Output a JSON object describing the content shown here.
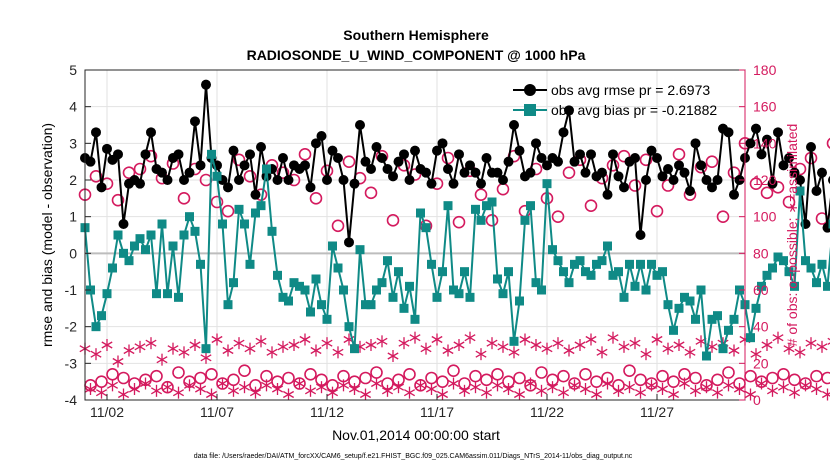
{
  "chart_data": {
    "type": "line",
    "title": "Southern Hemisphere",
    "subtitle": "RADIOSONDE_U_WIND_COMPONENT @ 1000 hPa",
    "xlabel": "Nov.01,2014 00:00:00 start",
    "ylabel": "rmse and bias (model - observation)",
    "y2label": "# of obs: o=possible; ∗=assimilated",
    "footnote": "data file: /Users/raeder/DAI/ATM_forcXX/CAM6_setup/f.e21.FHIST_BGC.f09_025.CAM6assim.011/Diags_NTrS_2014-11/obs_diag_output.nc",
    "xlim": [
      1,
      31
    ],
    "x_ticks": [
      2,
      7,
      12,
      17,
      22,
      27
    ],
    "x_tick_labels": [
      "11/02",
      "11/07",
      "11/12",
      "11/17",
      "11/22",
      "11/27"
    ],
    "ylim": [
      -4,
      5
    ],
    "y_ticks": [
      "-4",
      "-3",
      "-2",
      "-1",
      "0",
      "1",
      "2",
      "3",
      "4",
      "5"
    ],
    "y2lim": [
      0,
      180
    ],
    "y2_ticks": [
      "0",
      "20",
      "40",
      "60",
      "80",
      "100",
      "120",
      "140",
      "160",
      "180"
    ],
    "grid": true,
    "legend_placement": "top-right",
    "colors": {
      "rmse": "#000000",
      "bias": "#0f8a86",
      "obs_count": "#d41a5e",
      "zero_line": "#bdbdbd",
      "y2_axis": "#d41a5e"
    },
    "series": [
      {
        "name": "obs avg rmse pr = 2.6973",
        "marker": "filled-circle",
        "step_days": 0.25,
        "x_start": 1,
        "values": [
          2.6,
          2.5,
          3.3,
          1.8,
          2.85,
          2.55,
          2.7,
          0.8,
          1.9,
          2.0,
          1.9,
          2.7,
          3.3,
          2.3,
          2.2,
          2.0,
          2.6,
          2.7,
          2.0,
          2.2,
          3.6,
          2.4,
          4.6,
          2.6,
          2.4,
          2.0,
          1.8,
          2.8,
          2.0,
          2.4,
          2.7,
          1.6,
          2.9,
          2.1,
          2.3,
          2.0,
          2.6,
          2.0,
          2.4,
          2.3,
          2.4,
          1.8,
          3.0,
          3.2,
          2.0,
          2.8,
          2.6,
          2.0,
          0.3,
          1.9,
          3.5,
          2.5,
          2.3,
          2.9,
          2.6,
          2.3,
          2.1,
          2.5,
          2.7,
          2.0,
          2.8,
          2.3,
          2.2,
          1.9,
          2.8,
          3.0,
          2.3,
          1.9,
          2.7,
          2.2,
          2.4,
          2.2,
          1.9,
          2.6,
          2.2,
          2.2,
          2.0,
          2.5,
          3.5,
          2.8,
          2.1,
          2.2,
          3.0,
          2.6,
          2.4,
          2.6,
          2.5,
          3.3,
          3.9,
          2.5,
          2.7,
          2.2,
          2.7,
          2.1,
          2.2,
          1.6,
          2.7,
          2.1,
          1.8,
          2.5,
          2.6,
          0.5,
          2.0,
          2.8,
          2.6,
          2.1,
          2.3,
          2.0,
          2.4,
          2.2,
          1.7,
          3.0,
          2.4,
          2.0,
          1.8,
          2.0,
          3.4,
          3.3,
          1.6,
          2.0,
          2.6,
          3.0,
          3.4,
          2.7,
          3.1,
          1.9,
          3.3,
          2.4,
          2.6,
          2.2,
          2.0,
          0.8,
          2.9,
          1.7,
          2.2,
          0.7,
          2.0,
          2.4,
          2.2,
          2.3
        ]
      },
      {
        "name": "obs avg bias pr = -0.21882",
        "marker": "filled-square",
        "step_days": 0.25,
        "x_start": 1,
        "values": [
          0.7,
          -1.0,
          -2.0,
          -1.7,
          -1.1,
          -0.4,
          0.5,
          0.0,
          -0.2,
          0.2,
          0.4,
          0.1,
          0.5,
          -1.1,
          0.8,
          -1.1,
          0.2,
          -1.2,
          0.5,
          1.0,
          0.6,
          -0.3,
          -2.6,
          2.7,
          2.1,
          0.8,
          -1.4,
          -0.8,
          1.2,
          0.8,
          -0.3,
          1.1,
          1.3,
          2.3,
          0.6,
          -0.6,
          -1.2,
          -1.3,
          -0.8,
          -0.9,
          -1.0,
          -1.6,
          -0.7,
          -1.4,
          -1.8,
          0.2,
          -0.4,
          -1.0,
          -2.0,
          -2.6,
          0.1,
          -1.4,
          -1.4,
          -1.0,
          -0.8,
          -0.2,
          -1.2,
          -0.5,
          -1.5,
          -0.9,
          -1.8,
          1.1,
          0.7,
          -0.3,
          -1.2,
          -0.5,
          1.3,
          -1.0,
          -1.1,
          -0.5,
          -1.2,
          1.2,
          0.9,
          1.3,
          1.4,
          -0.7,
          -1.1,
          -0.5,
          -2.4,
          -1.3,
          0.9,
          1.3,
          -0.8,
          -1.0,
          1.9,
          0.1,
          -0.2,
          -0.5,
          -0.8,
          -0.3,
          -0.2,
          -0.5,
          -0.6,
          -0.3,
          -0.2,
          0.2,
          -0.6,
          -0.5,
          -1.2,
          -0.3,
          -0.9,
          -0.3,
          -1.0,
          -0.3,
          -0.6,
          -0.5,
          -1.4,
          -2.1,
          -1.5,
          -1.2,
          -1.3,
          -1.8,
          -1.0,
          -2.8,
          -1.8,
          -1.7,
          -2.6,
          -2.1,
          -1.8,
          -1.0,
          -1.4,
          -2.3,
          -1.5,
          -0.9,
          -0.6,
          -0.4,
          -0.1,
          -0.2,
          -0.5,
          -0.9,
          1.7,
          -0.2,
          -0.4,
          -0.8,
          -0.3,
          -0.9,
          0.8,
          1.0,
          0.8,
          -2.3
        ]
      }
    ],
    "obs_counts": {
      "possible_marker": "open-circle",
      "assimilated_marker": "asterisk",
      "possible": [
        112,
        8,
        122,
        10,
        118,
        14,
        109,
        12,
        124,
        9,
        126,
        11,
        133,
        13,
        121,
        7,
        129,
        15,
        110,
        10,
        126,
        12,
        120,
        14,
        108,
        9,
        103,
        11,
        131,
        16,
        122,
        8,
        112,
        13,
        128,
        10,
        124,
        12,
        120,
        9,
        134,
        14,
        110,
        11,
        125,
        8,
        95,
        13,
        130,
        10,
        121,
        12,
        113,
        15,
        133,
        9,
        98,
        11,
        128,
        14,
        123,
        8,
        95,
        12,
        118,
        10,
        132,
        16,
        97,
        9,
        125,
        13,
        112,
        11,
        98,
        14,
        115,
        10,
        133,
        12,
        103,
        8,
        126,
        15,
        110,
        11,
        100,
        13,
        124,
        9,
        131,
        14,
        106,
        10,
        121,
        12,
        128,
        8,
        133,
        16,
        117,
        11,
        131,
        9,
        103,
        13,
        117,
        10,
        134,
        14,
        112,
        12,
        127,
        8,
        130,
        11,
        100,
        15,
        124,
        9,
        140,
        13,
        118,
        10,
        113,
        12,
        116,
        14,
        108,
        11,
        126,
        9,
        132,
        13,
        99,
        12,
        140,
        10,
        117,
        8
      ],
      "assimilated": [
        28,
        6,
        25,
        4,
        30,
        8,
        21,
        3,
        27,
        6,
        29,
        9,
        31,
        5,
        22,
        7,
        28,
        4,
        26,
        8,
        30,
        6,
        23,
        3,
        33,
        9,
        27,
        5,
        31,
        7,
        28,
        4,
        32,
        8,
        26,
        6,
        29,
        3,
        30,
        9,
        33,
        5,
        27,
        7,
        31,
        4,
        26,
        8,
        33,
        6,
        29,
        3,
        30,
        9,
        32,
        5,
        24,
        7,
        31,
        4,
        34,
        8,
        28,
        6,
        33,
        3,
        27,
        9,
        30,
        5,
        34,
        7,
        25,
        4,
        31,
        8,
        29,
        6,
        26,
        3,
        33,
        9,
        30,
        5,
        28,
        7,
        31,
        4,
        27,
        8,
        30,
        6,
        33,
        3,
        26,
        9,
        34,
        5,
        29,
        7,
        31,
        4,
        25,
        8,
        33,
        6,
        28,
        3,
        30,
        9,
        26,
        5,
        32,
        7,
        29,
        4,
        31,
        8,
        27,
        6,
        33,
        3,
        25,
        9,
        30,
        5,
        34,
        7,
        28,
        4,
        26,
        8,
        31,
        6,
        29,
        3,
        32,
        9,
        27,
        0
      ]
    }
  }
}
